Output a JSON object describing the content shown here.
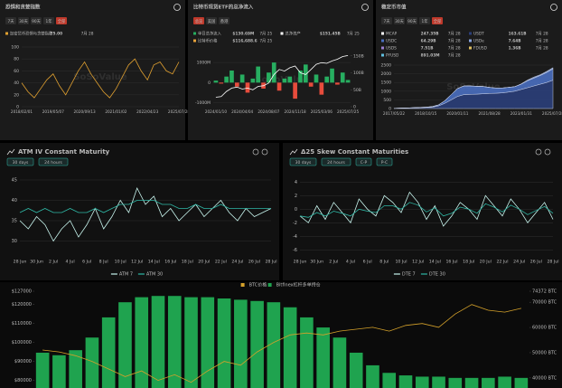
{
  "chart_data": [
    {
      "type": "line",
      "title": "恐惧和贪婪指数",
      "tabs": [
        "7天",
        "30天",
        "90天",
        "1年",
        "全部"
      ],
      "active_tab": 4,
      "legend": [
        {
          "name": "加密货币恐惧与贪婪指数",
          "value": "75.00",
          "date": "7月 28",
          "color": "#e0a030"
        }
      ],
      "watermark": "SoSoValue",
      "categories": [
        "2018/02/01",
        null,
        null,
        null,
        null,
        "2019/05/07",
        null,
        null,
        null,
        null,
        "2020/09/13",
        null,
        null,
        null,
        null,
        "2021/01/02",
        null,
        null,
        null,
        null,
        "2022/04/23",
        null,
        null,
        null,
        null,
        "2025/07/28"
      ],
      "series": [
        {
          "color": "#e0a030",
          "values": [
            40,
            25,
            15,
            30,
            45,
            55,
            35,
            20,
            40,
            60,
            75,
            55,
            40,
            25,
            15,
            30,
            50,
            70,
            80,
            60,
            45,
            70,
            75,
            60,
            55,
            75
          ]
        }
      ],
      "ylim": [
        0,
        100
      ],
      "yticks": [
        0,
        20,
        40,
        60,
        80,
        100
      ],
      "grid": true
    },
    {
      "type": "bar_line",
      "title": "比特币现货ETF的总净流入",
      "tabs": [
        "总览",
        "美国",
        "香港"
      ],
      "active_tab": 0,
      "legend": [
        {
          "name": "单日总净流入",
          "value": "$130.69M",
          "date": "7月 25",
          "color": "#27ae60"
        },
        {
          "name": "总净资产",
          "value": "$151.45B",
          "date": "7月 25",
          "color": "#ffffff"
        },
        {
          "name": "比特币价格",
          "value": "$116,688.6",
          "date": "7月 25",
          "color": "#e8a33a"
        }
      ],
      "watermark": "SoSoValue",
      "categories": [
        "2024/01/10",
        null,
        null,
        null,
        null,
        "2024/04/04",
        null,
        null,
        null,
        null,
        "2024/08/07",
        null,
        null,
        null,
        null,
        "2024/11/18",
        null,
        null,
        null,
        null,
        "2025/03/06",
        null,
        null,
        null,
        null,
        "2025/07/25"
      ],
      "series": [
        {
          "mark": "bar",
          "color": "#27ae60",
          "negative_color": "#e74c3c",
          "values": [
            100,
            -50,
            300,
            600,
            -200,
            400,
            -500,
            200,
            800,
            -300,
            500,
            1000,
            -400,
            200,
            300,
            -800,
            600,
            900,
            -200,
            400,
            -600,
            300,
            700,
            -100,
            500,
            131
          ]
        },
        {
          "mark": "line",
          "axis": "y2",
          "color": "#ffffff",
          "values": [
            28,
            30,
            45,
            55,
            58,
            52,
            55,
            50,
            60,
            62,
            70,
            95,
            110,
            105,
            115,
            120,
            100,
            95,
            110,
            125,
            130,
            128,
            135,
            140,
            148,
            151
          ]
        }
      ],
      "ylim": [
        -1200,
        1500
      ],
      "yticks": [
        {
          "value": -1000,
          "label": "-1000M"
        },
        0,
        {
          "value": 1000,
          "label": "1000M"
        }
      ],
      "y2lim": [
        0,
        160
      ],
      "y2ticks": [
        0,
        {
          "value": 50,
          "label": "50B"
        },
        {
          "value": 100,
          "label": "100B"
        },
        {
          "value": 150,
          "label": "150B"
        }
      ],
      "grid": true
    },
    {
      "type": "stacked_area",
      "title": "稳定币市值",
      "tabs": [
        "7天",
        "30天",
        "90天",
        "1年",
        "全部"
      ],
      "active_tab": 4,
      "legend": [
        {
          "name": "MCAP",
          "value": "247.35B",
          "date": "7月 28",
          "color": "#ffffff"
        },
        {
          "name": "USDT",
          "value": "163.61B",
          "date": "7月 28",
          "color": "#2b3f7a"
        },
        {
          "name": "USDC",
          "value": "64.29B",
          "date": "7月 28",
          "color": "#4a6fc0"
        },
        {
          "name": "USDe",
          "value": "7.64B",
          "date": "7月 28",
          "color": "#8aa6e0"
        },
        {
          "name": "USDS",
          "value": "7.51B",
          "date": "7月 28",
          "color": "#9b7fd1"
        },
        {
          "name": "FDUSD",
          "value": "1.36B",
          "date": "7月 28",
          "color": "#e0c060"
        },
        {
          "name": "PYUSD",
          "value": "891.03M",
          "date": "7月 28",
          "color": "#60c0e0"
        }
      ],
      "watermark": "SoSoValue",
      "categories": [
        "2017/05/22",
        null,
        null,
        null,
        null,
        "2018/10/15",
        null,
        null,
        null,
        null,
        "2020/01/11",
        null,
        null,
        null,
        null,
        "2021/08/28",
        null,
        null,
        null,
        null,
        "2023/01/31",
        null,
        null,
        null,
        null,
        "2025/07/28"
      ],
      "series": [
        {
          "color": "#2b3f7a",
          "values": [
            10,
            20,
            30,
            40,
            50,
            60,
            80,
            150,
            300,
            500,
            700,
            800,
            820,
            830,
            850,
            870,
            880,
            900,
            950,
            1000,
            1100,
            1200,
            1300,
            1400,
            1500,
            1636
          ]
        },
        {
          "color": "#4a6fc0",
          "values": [
            0,
            0,
            0,
            5,
            10,
            20,
            30,
            60,
            150,
            300,
            450,
            500,
            480,
            450,
            420,
            350,
            300,
            280,
            270,
            260,
            300,
            400,
            450,
            500,
            580,
            643
          ]
        },
        {
          "color": "#8aa6e0",
          "values": [
            0,
            0,
            0,
            0,
            0,
            0,
            0,
            0,
            0,
            0,
            0,
            0,
            0,
            0,
            0,
            0,
            0,
            0,
            0,
            0,
            20,
            40,
            60,
            50,
            60,
            76
          ]
        }
      ],
      "ylim": [
        0,
        2500
      ],
      "yticks": [
        0,
        500,
        1000,
        1500,
        2000,
        2500
      ],
      "grid": true
    },
    {
      "type": "line",
      "title": "ATM IV Constant Maturity",
      "buttons": [
        "30 days",
        "24 hours"
      ],
      "categories": [
        "28 Jun",
        null,
        "30 Jun",
        null,
        "2 Jul",
        null,
        "4 Jul",
        null,
        "6 Jul",
        null,
        "8 Jul",
        null,
        "10 Jul",
        null,
        "12 Jul",
        null,
        "14 Jul",
        null,
        "16 Jul",
        null,
        "18 Jul",
        null,
        "20 Jul",
        null,
        "22 Jul",
        null,
        "24 Jul",
        null,
        "26 Jul",
        null,
        "28 Jul"
      ],
      "series": [
        {
          "name": "ATM 7",
          "color": "#c8f5ee",
          "values": [
            35,
            33,
            36,
            34,
            30,
            33,
            35,
            31,
            34,
            38,
            33,
            36,
            40,
            37,
            43,
            39,
            41,
            36,
            38,
            35,
            37,
            39,
            36,
            38,
            40,
            37,
            35,
            38,
            36,
            37,
            38
          ]
        },
        {
          "name": "ATM 30",
          "color": "#2fb8a6",
          "values": [
            37,
            38,
            37,
            38,
            37,
            37,
            38,
            37,
            37,
            38,
            37,
            38,
            39,
            39,
            40,
            40,
            40,
            39,
            39,
            38,
            38,
            39,
            38,
            38,
            39,
            38,
            38,
            38,
            38,
            38,
            38
          ]
        }
      ],
      "ylim": [
        27,
        47
      ],
      "yticks": [
        30,
        35,
        40,
        45
      ],
      "grid": true,
      "legend_position": "bottom"
    },
    {
      "type": "line",
      "title": "Δ25 Skew Constant Maturities",
      "buttons": [
        "30 days",
        "24 hours",
        "C-P",
        "P-C"
      ],
      "categories": [
        "28 Jun",
        null,
        "30 Jun",
        null,
        "2 Jul",
        null,
        "4 Jul",
        null,
        "6 Jul",
        null,
        "8 Jul",
        null,
        "10 Jul",
        null,
        "12 Jul",
        null,
        "14 Jul",
        null,
        "16 Jul",
        null,
        "18 Jul",
        null,
        "20 Jul",
        null,
        "22 Jul",
        null,
        "24 Jul",
        null,
        "26 Jul",
        null,
        "28 Jul"
      ],
      "series": [
        {
          "name": "DTE 7",
          "color": "#c8f5ee",
          "values": [
            -1,
            -2,
            0.5,
            -1.5,
            1,
            -0.5,
            -2,
            1.5,
            0,
            -1,
            2,
            1,
            -0.5,
            2.5,
            1,
            -1.5,
            0.5,
            -2.5,
            -1,
            1,
            0,
            -1.5,
            2,
            0.5,
            -1,
            1.5,
            0,
            -2,
            -0.5,
            1,
            -1.5
          ]
        },
        {
          "name": "DTE 30",
          "color": "#2fb8a6",
          "values": [
            -1,
            -1.2,
            -0.5,
            -1,
            -0.3,
            -0.6,
            -1,
            0,
            -0.3,
            -0.5,
            0.5,
            0.5,
            0,
            1,
            0.6,
            -0.4,
            0.2,
            -1,
            -0.6,
            0.3,
            0,
            -0.6,
            0.8,
            0.3,
            -0.4,
            0.6,
            0,
            -0.8,
            -0.2,
            0.4,
            -0.6
          ]
        }
      ],
      "ylim": [
        -6.5,
        5.5
      ],
      "yticks": [
        -6,
        -4,
        -2,
        0,
        2,
        4
      ],
      "grid": true,
      "legend_position": "bottom"
    },
    {
      "type": "bar_line",
      "series": [
        {
          "name": "BTC价格",
          "mark": "line",
          "color": "#d4a12a",
          "values": [
            96000,
            95000,
            93000,
            90000,
            86000,
            82000,
            85000,
            80000,
            83000,
            79000,
            85000,
            90000,
            88000,
            95000,
            100000,
            104000,
            105000,
            104000,
            106000,
            107000,
            108000,
            106000,
            109000,
            110000,
            108000,
            115000,
            120000,
            117000,
            116000,
            118000
          ]
        },
        {
          "name": "Bitfinex杠杆多单持仓",
          "mark": "bar",
          "axis": "y2",
          "color": "#1fa34f",
          "values": [
            50000,
            49000,
            51000,
            56000,
            64000,
            70000,
            72000,
            72500,
            72500,
            72000,
            72000,
            71500,
            71000,
            70500,
            70000,
            68000,
            64000,
            60000,
            56000,
            50000,
            45000,
            42000,
            41000,
            40500,
            40500,
            40000,
            40000,
            40000,
            40500,
            40000
          ]
        }
      ],
      "ylim": [
        76000,
        127000
      ],
      "yticks": [
        {
          "value": 80000,
          "label": "$80000"
        },
        {
          "value": 90000,
          "label": "$90000"
        },
        {
          "value": 100000,
          "label": "$100000"
        },
        {
          "value": 110000,
          "label": "$110000"
        },
        {
          "value": 120000,
          "label": "$120000"
        },
        {
          "value": 127000,
          "label": "$127000"
        }
      ],
      "y2lim": [
        36000,
        74372
      ],
      "y2ticks": [
        {
          "value": 40000,
          "label": "40000 BTC"
        },
        {
          "value": 50000,
          "label": "50000 BTC"
        },
        {
          "value": 60000,
          "label": "60000 BTC"
        },
        {
          "value": 70000,
          "label": "70000 BTC"
        },
        {
          "value": 74372,
          "label": "74372 BTC"
        }
      ],
      "grid": false,
      "legend_position": "top"
    }
  ]
}
